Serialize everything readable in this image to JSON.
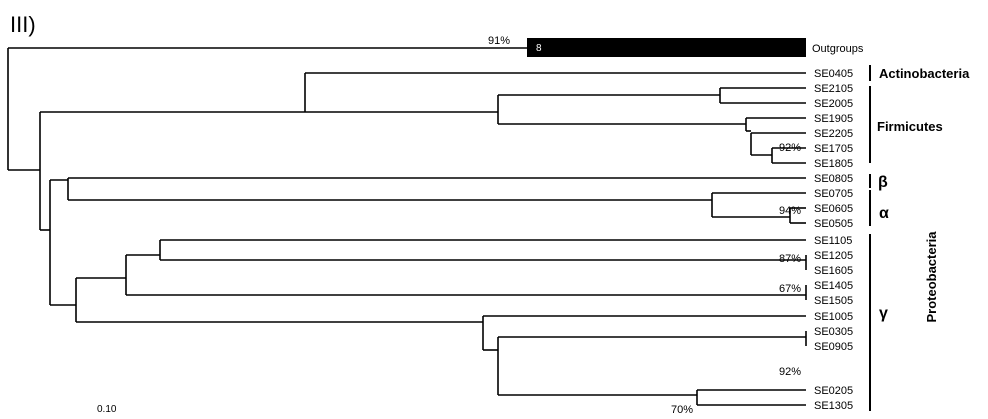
{
  "panel_label": "III)",
  "scale_bar_label": "0.10",
  "outgroup": {
    "label": "Outgroups",
    "count": "8",
    "bootstrap": "91%"
  },
  "taxa": [
    "SE0405",
    "SE2105",
    "SE2005",
    "SE1905",
    "SE2205",
    "SE1705",
    "SE1805",
    "SE0805",
    "SE0705",
    "SE0605",
    "SE0505",
    "SE1105",
    "SE1205",
    "SE1605",
    "SE1405",
    "SE1505",
    "SE1005",
    "SE0305",
    "SE0905",
    "SE0205",
    "SE1305"
  ],
  "bootstraps": [
    "92%",
    "94%",
    "87%",
    "67%",
    "92%",
    "70%"
  ],
  "groups": {
    "actinobacteria": "Actinobacteria",
    "firmicutes": "Firmicutes",
    "beta": "β",
    "alpha": "α",
    "gamma": "γ",
    "proteobacteria": "Proteobacteria"
  }
}
